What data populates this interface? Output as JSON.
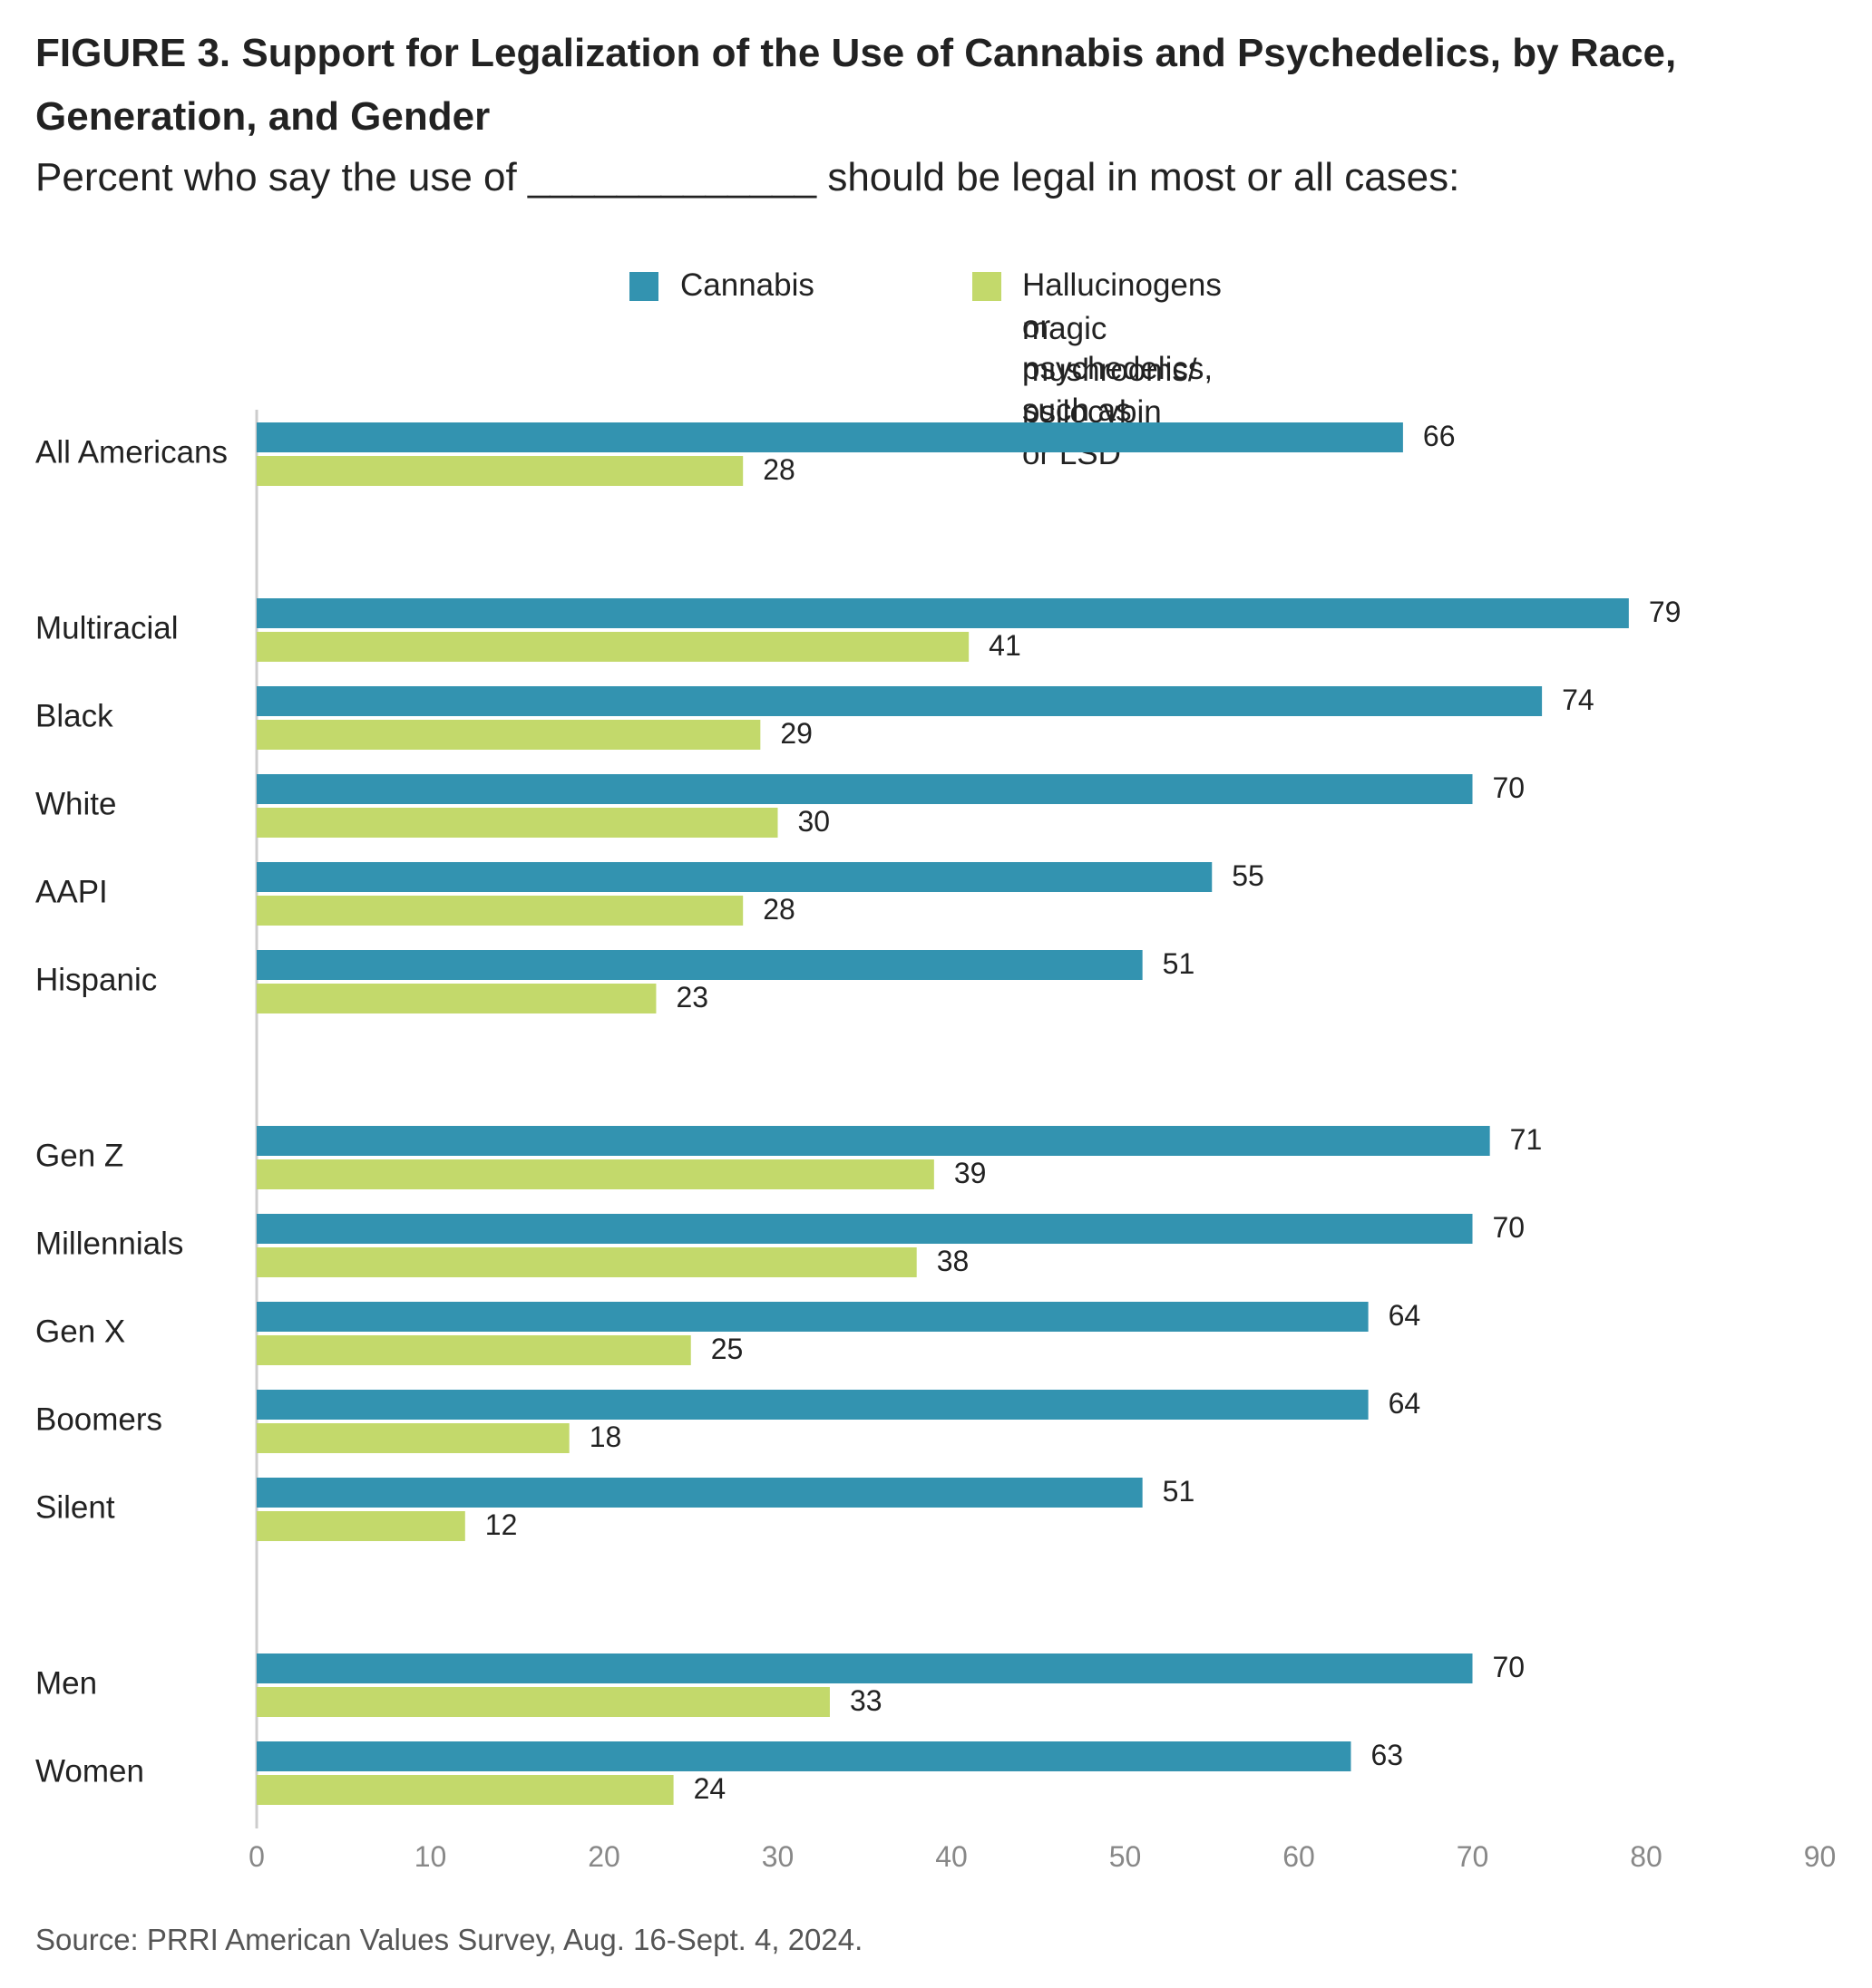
{
  "chart_data": {
    "type": "bar",
    "orientation": "horizontal",
    "title": "FIGURE 3. Support for Legalization of the Use of Cannabis and Psychedelics, by Race, Generation, and Gender",
    "subtitle": "Percent who say the use of _____________ should be legal in most or all cases:",
    "categories": [
      "All Americans",
      "Multiracial",
      "Black",
      "White",
      "AAPI",
      "Hispanic",
      "Gen Z",
      "Millennials",
      "Gen X",
      "Boomers",
      "Silent",
      "Men",
      "Women"
    ],
    "groups": [
      [
        "All Americans"
      ],
      [
        "Multiracial",
        "Black",
        "White",
        "AAPI",
        "Hispanic"
      ],
      [
        "Gen Z",
        "Millennials",
        "Gen X",
        "Boomers",
        "Silent"
      ],
      [
        "Men",
        "Women"
      ]
    ],
    "series": [
      {
        "name": "Cannabis",
        "color": "#3393b0",
        "values": [
          66,
          79,
          74,
          70,
          55,
          51,
          71,
          70,
          64,
          64,
          51,
          70,
          63
        ]
      },
      {
        "name": "Hallucinogens or psychedelics, such as magic mushrooms/ psilocybin or LSD",
        "color": "#c3d96b",
        "values": [
          28,
          41,
          29,
          30,
          28,
          23,
          39,
          38,
          25,
          18,
          12,
          33,
          24
        ]
      }
    ],
    "xlim": [
      0,
      90
    ],
    "xticks": [
      0,
      10,
      20,
      30,
      40,
      50,
      60,
      70,
      80,
      90
    ],
    "legend_position": "top",
    "grid": false
  },
  "legend": {
    "item1": "Cannabis",
    "item2_line1": "Hallucinogens or psychedelics, such as",
    "item2_line2": "magic mushrooms/ psilocybin or LSD"
  },
  "source": "Source: PRRI American Values Survey, Aug. 16-Sept. 4, 2024."
}
